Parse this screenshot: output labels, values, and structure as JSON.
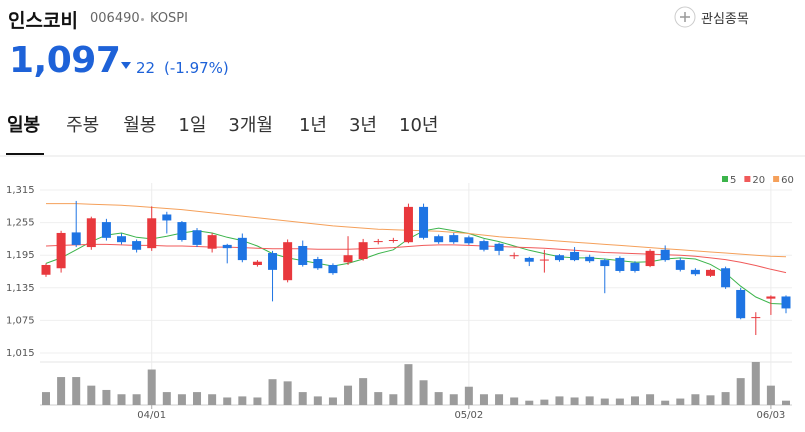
{
  "header": {
    "name": "인스코비",
    "code": "006490",
    "market": "KOSPI",
    "watch_button": "관심종목"
  },
  "price": {
    "current": "1,097",
    "change": "22",
    "change_pct": "(-1.97%)"
  },
  "tabs": [
    "일봉",
    "주봉",
    "월봉",
    "1일",
    "3개월",
    "1년",
    "3년",
    "10년"
  ],
  "chart_data": {
    "type": "candlestick",
    "categories": [
      null,
      null,
      null,
      null,
      null,
      null,
      null,
      "04/01",
      null,
      null,
      null,
      null,
      null,
      null,
      null,
      null,
      null,
      null,
      null,
      null,
      null,
      null,
      null,
      null,
      null,
      null,
      null,
      null,
      "05/02",
      null,
      null,
      null,
      null,
      null,
      null,
      null,
      null,
      null,
      null,
      null,
      null,
      null,
      null,
      null,
      null,
      null,
      null,
      null,
      "06/03",
      null
    ],
    "open": [
      1159,
      1171,
      1237,
      1210,
      1256,
      1230,
      1221,
      1208,
      1270,
      1256,
      1241,
      1207,
      1214,
      1227,
      1177,
      1199,
      1149,
      1212,
      1188,
      1177,
      1182,
      1188,
      1220,
      1222,
      1219,
      1284,
      1230,
      1232,
      1228,
      1221,
      1216,
      1194,
      1190,
      1186,
      1195,
      1201,
      1192,
      1186,
      1190,
      1181,
      1175,
      1205,
      1186,
      1168,
      1157,
      1171,
      1131,
      1080,
      1115,
      1119
    ],
    "high": [
      1180,
      1240,
      1295,
      1266,
      1262,
      1235,
      1224,
      1285,
      1275,
      1258,
      1245,
      1236,
      1216,
      1235,
      1186,
      1203,
      1224,
      1222,
      1192,
      1180,
      1230,
      1225,
      1225,
      1227,
      1290,
      1290,
      1233,
      1236,
      1231,
      1224,
      1218,
      1200,
      1192,
      1205,
      1197,
      1210,
      1196,
      1189,
      1193,
      1184,
      1206,
      1213,
      1190,
      1171,
      1170,
      1174,
      1135,
      1090,
      1121,
      1121
    ],
    "low": [
      1155,
      1163,
      1210,
      1205,
      1222,
      1215,
      1200,
      1203,
      1235,
      1220,
      1210,
      1200,
      1180,
      1182,
      1174,
      1110,
      1145,
      1174,
      1168,
      1159,
      1177,
      1185,
      1215,
      1218,
      1217,
      1224,
      1216,
      1216,
      1214,
      1202,
      1195,
      1188,
      1175,
      1163,
      1183,
      1184,
      1181,
      1125,
      1163,
      1163,
      1173,
      1183,
      1165,
      1157,
      1155,
      1133,
      1077,
      1048,
      1085,
      1088
    ],
    "close": [
      1177,
      1236,
      1214,
      1263,
      1227,
      1219,
      1205,
      1263,
      1259,
      1223,
      1214,
      1232,
      1208,
      1186,
      1183,
      1168,
      1219,
      1177,
      1171,
      1162,
      1195,
      1219,
      1221,
      1223,
      1284,
      1227,
      1219,
      1219,
      1217,
      1205,
      1203,
      1195,
      1183,
      1187,
      1186,
      1186,
      1184,
      1175,
      1166,
      1166,
      1203,
      1186,
      1168,
      1160,
      1168,
      1136,
      1079,
      1081,
      1119,
      1097
    ],
    "volume": [
      12,
      26,
      26,
      18,
      14,
      10,
      10,
      33,
      12,
      10,
      12,
      10,
      7,
      8,
      7,
      24,
      22,
      12,
      8,
      7,
      18,
      25,
      12,
      10,
      38,
      23,
      12,
      10,
      17,
      10,
      10,
      7,
      4,
      5,
      8,
      7,
      8,
      6,
      6,
      8,
      10,
      4,
      6,
      10,
      9,
      12,
      25,
      40,
      18,
      4
    ],
    "series": [
      {
        "name": "5",
        "color": "#3cb44b",
        "values": [
          1180,
          1190,
          1205,
          1220,
          1232,
          1236,
          1228,
          1225,
          1230,
          1236,
          1240,
          1236,
          1228,
          1222,
          1212,
          1198,
          1190,
          1185,
          1180,
          1175,
          1180,
          1188,
          1198,
          1205,
          1225,
          1240,
          1245,
          1240,
          1235,
          1226,
          1220,
          1212,
          1204,
          1198,
          1192,
          1190,
          1190,
          1188,
          1185,
          1182,
          1183,
          1188,
          1190,
          1188,
          1178,
          1162,
          1138,
          1118,
          1106,
          1105
        ]
      },
      {
        "name": "20",
        "color": "#f05a5a",
        "values": [
          1212,
          1213,
          1214,
          1215,
          1215,
          1214,
          1213,
          1213,
          1212,
          1212,
          1211,
          1210,
          1210,
          1209,
          1208,
          1207,
          1207,
          1207,
          1206,
          1206,
          1206,
          1207,
          1208,
          1209,
          1211,
          1213,
          1214,
          1214,
          1213,
          1212,
          1211,
          1210,
          1209,
          1208,
          1206,
          1204,
          1202,
          1200,
          1199,
          1198,
          1197,
          1196,
          1195,
          1193,
          1190,
          1187,
          1182,
          1176,
          1169,
          1163
        ]
      },
      {
        "name": "60",
        "color": "#f5a05a",
        "values": [
          1290,
          1290,
          1290,
          1289,
          1288,
          1287,
          1285,
          1283,
          1281,
          1279,
          1276,
          1273,
          1270,
          1267,
          1264,
          1261,
          1258,
          1255,
          1252,
          1249,
          1247,
          1245,
          1243,
          1242,
          1241,
          1240,
          1239,
          1237,
          1235,
          1232,
          1229,
          1227,
          1225,
          1223,
          1221,
          1219,
          1217,
          1215,
          1213,
          1211,
          1209,
          1207,
          1205,
          1203,
          1201,
          1199,
          1197,
          1195,
          1193,
          1192
        ]
      }
    ],
    "up_color": "#e8383d",
    "down_color": "#1e74e3",
    "volume_color": "#9b9b9b",
    "ylim": [
      1002,
      1328
    ],
    "yticks": [
      {
        "value": 1315,
        "label": "1,315"
      },
      {
        "value": 1255,
        "label": "1,255"
      },
      {
        "value": 1195,
        "label": "1,195"
      },
      {
        "value": 1135,
        "label": "1,135"
      },
      {
        "value": 1075,
        "label": "1,075"
      },
      {
        "value": 1015,
        "label": "1,015"
      }
    ],
    "grid": true
  }
}
